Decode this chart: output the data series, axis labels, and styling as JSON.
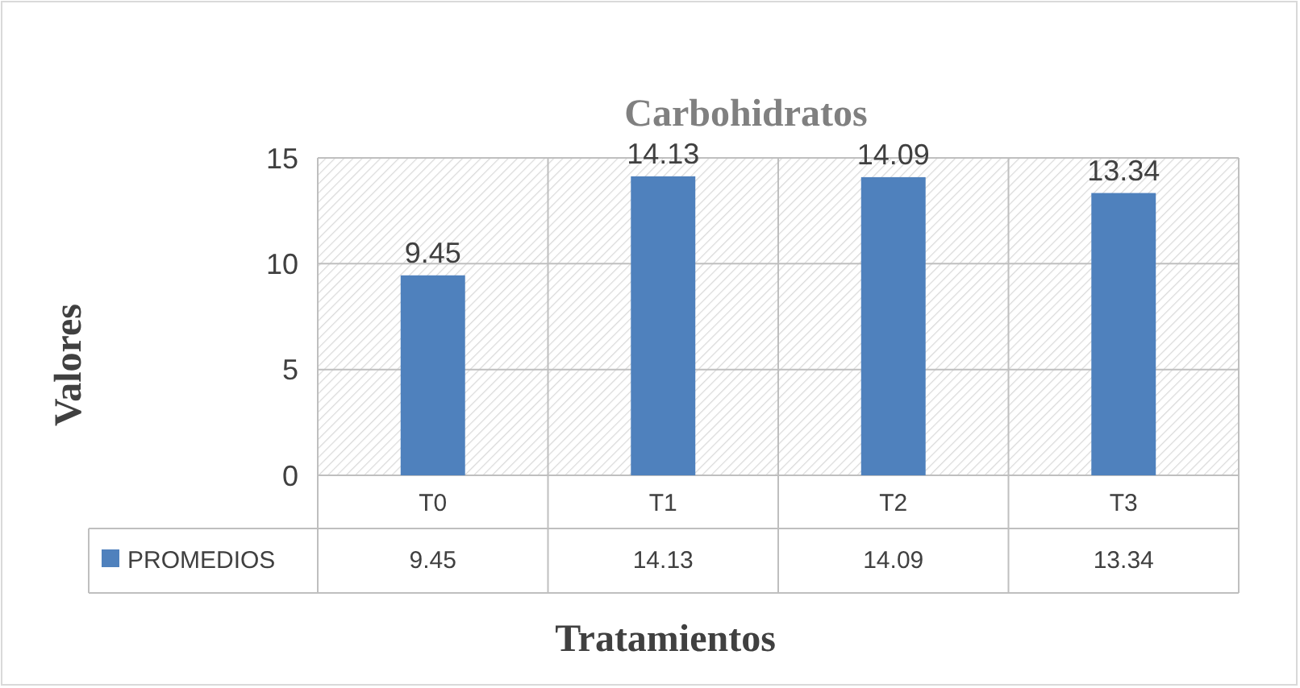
{
  "chart_data": {
    "type": "bar",
    "title": "Carbohidratos",
    "xlabel": "Tratamientos",
    "ylabel": "Valores",
    "categories": [
      "T0",
      "T1",
      "T2",
      "T3"
    ],
    "series": [
      {
        "name": "PROMEDIOS",
        "color": "#4f81bd",
        "values": [
          9.45,
          14.13,
          14.09,
          13.34
        ],
        "value_labels": [
          "9.45",
          "14.13",
          "14.09",
          "13.34"
        ]
      }
    ],
    "ylim": [
      0,
      15
    ],
    "yticks": [
      0,
      5,
      10,
      15
    ],
    "grid": true,
    "legend": "bottom",
    "annotations": [
      "9.45",
      "14.13",
      "14.09",
      "13.34"
    ]
  }
}
